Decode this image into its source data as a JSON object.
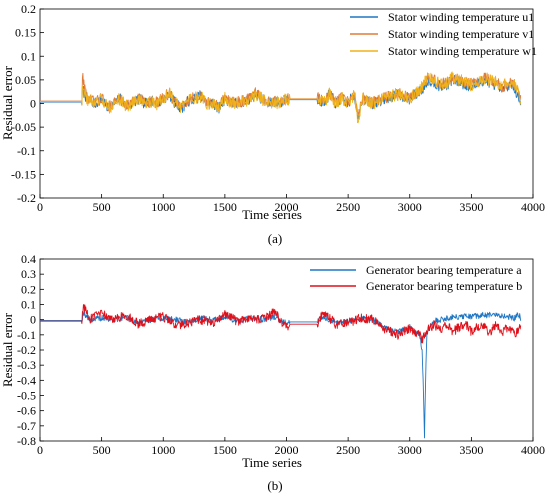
{
  "chart_data": [
    {
      "type": "line",
      "xlabel": "Time series",
      "ylabel": "Residual error",
      "xlim": [
        0,
        4000
      ],
      "ylim": [
        -0.2,
        0.2
      ],
      "grid": false,
      "legend_position": "top-right",
      "x_tick_labels": [
        "0",
        "500",
        "1000",
        "1500",
        "2000",
        "2500",
        "3000",
        "3500",
        "4000"
      ],
      "y_tick_labels": [
        "0.2",
        "0.15",
        "0.1",
        "0.05",
        "0",
        "-0.05",
        "-0.1",
        "-0.15",
        "-0.2"
      ],
      "caption": "(a)",
      "series": [
        {
          "name": "Stator winding temperature u1",
          "color": "#1f77c4",
          "noise_scale": 1.0,
          "x": [
            0,
            340,
            345,
            380,
            450,
            500,
            550,
            600,
            650,
            700,
            750,
            800,
            850,
            900,
            950,
            1000,
            1050,
            1100,
            1150,
            1200,
            1250,
            1300,
            1350,
            1400,
            1450,
            1500,
            1550,
            1600,
            1650,
            1700,
            1750,
            1800,
            1850,
            1900,
            1950,
            2000,
            2020,
            2250,
            2260,
            2300,
            2350,
            2400,
            2450,
            2500,
            2550,
            2580,
            2620,
            2700,
            2800,
            2900,
            3000,
            3050,
            3100,
            3150,
            3200,
            3250,
            3300,
            3350,
            3400,
            3450,
            3500,
            3550,
            3600,
            3650,
            3700,
            3750,
            3800,
            3850,
            3900
          ],
          "y": [
            0.003,
            0.003,
            0.03,
            0.01,
            0.0,
            0.01,
            -0.01,
            0.0,
            0.01,
            -0.005,
            0.0,
            0.01,
            0.0,
            0.005,
            0.0,
            0.01,
            0.02,
            0.0,
            -0.01,
            0.005,
            0.01,
            0.015,
            0.0,
            0.0,
            -0.01,
            0.01,
            0.0,
            0.0,
            0.005,
            0.01,
            0.02,
            0.01,
            0.0,
            0.005,
            0.0,
            0.01,
            0.008,
            0.008,
            0.01,
            0.0,
            0.02,
            0.0,
            0.01,
            0.0,
            0.02,
            -0.03,
            0.01,
            0.0,
            0.01,
            0.02,
            0.01,
            0.02,
            0.03,
            0.05,
            0.045,
            0.035,
            0.04,
            0.05,
            0.045,
            0.04,
            0.035,
            0.04,
            0.05,
            0.045,
            0.04,
            0.03,
            0.04,
            0.035,
            0.0
          ]
        },
        {
          "name": "Stator winding temperature v1",
          "color": "#e07b39",
          "noise_scale": 1.0,
          "x": [
            0,
            340,
            345,
            380,
            450,
            500,
            550,
            600,
            650,
            700,
            750,
            800,
            850,
            900,
            950,
            1000,
            1050,
            1100,
            1150,
            1200,
            1250,
            1300,
            1350,
            1400,
            1450,
            1500,
            1550,
            1600,
            1650,
            1700,
            1750,
            1800,
            1850,
            1900,
            1950,
            2000,
            2020,
            2250,
            2260,
            2300,
            2350,
            2400,
            2450,
            2500,
            2550,
            2580,
            2620,
            2700,
            2800,
            2900,
            3000,
            3050,
            3100,
            3150,
            3200,
            3250,
            3300,
            3350,
            3400,
            3450,
            3500,
            3550,
            3600,
            3650,
            3700,
            3750,
            3800,
            3850,
            3900
          ],
          "y": [
            0.005,
            0.005,
            0.06,
            0.012,
            0.002,
            0.012,
            -0.008,
            0.002,
            0.012,
            -0.003,
            0.002,
            0.012,
            0.002,
            0.007,
            0.002,
            0.012,
            0.022,
            0.002,
            -0.008,
            0.007,
            0.012,
            0.017,
            0.002,
            0.002,
            -0.008,
            0.012,
            0.002,
            0.002,
            0.007,
            0.012,
            0.022,
            0.012,
            0.002,
            0.007,
            0.002,
            0.012,
            0.01,
            0.01,
            0.012,
            0.002,
            0.022,
            0.002,
            0.012,
            0.002,
            0.022,
            -0.028,
            0.012,
            0.002,
            0.012,
            0.022,
            0.012,
            0.022,
            0.034,
            0.056,
            0.05,
            0.04,
            0.045,
            0.056,
            0.05,
            0.045,
            0.04,
            0.045,
            0.056,
            0.05,
            0.045,
            0.034,
            0.045,
            0.04,
            0.01
          ]
        },
        {
          "name": "Stator winding temperature w1",
          "color": "#f0b21a",
          "noise_scale": 1.15,
          "x": [
            0,
            340,
            345,
            380,
            450,
            500,
            550,
            600,
            650,
            700,
            750,
            800,
            850,
            900,
            950,
            1000,
            1050,
            1100,
            1150,
            1200,
            1250,
            1300,
            1350,
            1400,
            1450,
            1500,
            1550,
            1600,
            1650,
            1700,
            1750,
            1800,
            1850,
            1900,
            1950,
            2000,
            2020,
            2250,
            2260,
            2300,
            2350,
            2400,
            2450,
            2500,
            2550,
            2580,
            2620,
            2700,
            2800,
            2900,
            3000,
            3050,
            3100,
            3150,
            3200,
            3250,
            3300,
            3350,
            3400,
            3450,
            3500,
            3550,
            3600,
            3650,
            3700,
            3750,
            3800,
            3850,
            3900
          ],
          "y": [
            0.004,
            0.004,
            0.045,
            0.01,
            0.0,
            0.01,
            -0.01,
            0.0,
            0.01,
            -0.005,
            0.0,
            0.01,
            0.0,
            0.005,
            0.0,
            0.01,
            0.02,
            0.0,
            -0.01,
            0.005,
            0.01,
            0.015,
            0.0,
            0.0,
            -0.01,
            0.01,
            0.0,
            0.0,
            0.005,
            0.01,
            0.02,
            0.01,
            0.0,
            0.005,
            0.0,
            0.01,
            0.009,
            0.009,
            0.01,
            0.0,
            0.02,
            0.0,
            0.01,
            0.0,
            0.02,
            -0.035,
            0.01,
            0.0,
            0.01,
            0.02,
            0.01,
            0.02,
            0.035,
            0.06,
            0.05,
            0.04,
            0.045,
            0.055,
            0.05,
            0.045,
            0.04,
            0.045,
            0.055,
            0.05,
            0.045,
            0.035,
            0.045,
            0.04,
            0.008
          ]
        }
      ]
    },
    {
      "type": "line",
      "xlabel": "Time series",
      "ylabel": "Residual error",
      "xlim": [
        0,
        4000
      ],
      "ylim": [
        -0.8,
        0.4
      ],
      "grid": false,
      "legend_position": "top-right",
      "x_tick_labels": [
        "0",
        "500",
        "1000",
        "1500",
        "2000",
        "2500",
        "3000",
        "3500",
        "4000"
      ],
      "y_tick_labels": [
        "0.4",
        "0.3",
        "0.2",
        "0.1",
        "0",
        "-0.1",
        "-0.2",
        "-0.3",
        "-0.4",
        "-0.5",
        "-0.6",
        "-0.7",
        "-0.8"
      ],
      "caption": "(b)",
      "series": [
        {
          "name": "Generator bearing temperature a",
          "color": "#1f77c4",
          "noise_scale": 0.9,
          "x": [
            0,
            340,
            350,
            400,
            500,
            600,
            700,
            800,
            900,
            1000,
            1100,
            1200,
            1300,
            1400,
            1500,
            1600,
            1700,
            1800,
            1900,
            2000,
            2020,
            2250,
            2300,
            2400,
            2500,
            2600,
            2700,
            2800,
            2900,
            3000,
            3080,
            3100,
            3110,
            3120,
            3130,
            3140,
            3170,
            3200,
            3300,
            3400,
            3500,
            3600,
            3700,
            3800,
            3850,
            3880,
            3900
          ],
          "y": [
            -0.005,
            -0.005,
            0.05,
            0.0,
            0.01,
            0.0,
            0.02,
            -0.02,
            0.0,
            0.01,
            0.0,
            -0.02,
            0.01,
            0.0,
            0.02,
            -0.01,
            0.01,
            0.0,
            0.02,
            -0.02,
            -0.015,
            -0.015,
            0.02,
            -0.02,
            -0.01,
            0.01,
            0.0,
            -0.05,
            -0.08,
            -0.05,
            -0.1,
            -0.2,
            -0.45,
            -0.78,
            -0.35,
            -0.08,
            -0.03,
            -0.01,
            0.01,
            0.02,
            0.02,
            0.03,
            0.03,
            0.02,
            0.01,
            0.04,
            0.01
          ]
        },
        {
          "name": "Generator bearing temperature b",
          "color": "#e0101a",
          "noise_scale": 1.4,
          "x": [
            0,
            340,
            350,
            400,
            500,
            600,
            700,
            800,
            900,
            1000,
            1100,
            1200,
            1300,
            1400,
            1500,
            1600,
            1700,
            1800,
            1900,
            2000,
            2020,
            2250,
            2300,
            2400,
            2500,
            2600,
            2700,
            2800,
            2900,
            3000,
            3080,
            3100,
            3130,
            3150,
            3200,
            3250,
            3300,
            3350,
            3400,
            3450,
            3500,
            3550,
            3600,
            3650,
            3700,
            3750,
            3800,
            3850,
            3900
          ],
          "y": [
            -0.01,
            -0.01,
            0.1,
            0.0,
            0.04,
            0.0,
            0.03,
            -0.03,
            0.0,
            0.02,
            -0.04,
            -0.02,
            0.0,
            -0.03,
            0.03,
            -0.01,
            0.01,
            0.0,
            0.05,
            -0.05,
            -0.03,
            -0.03,
            0.05,
            -0.03,
            -0.02,
            0.01,
            0.0,
            -0.06,
            -0.1,
            -0.06,
            -0.1,
            -0.13,
            -0.08,
            -0.06,
            -0.03,
            -0.07,
            -0.03,
            -0.08,
            -0.05,
            -0.02,
            -0.08,
            -0.05,
            -0.04,
            -0.09,
            -0.03,
            -0.08,
            -0.05,
            -0.1,
            -0.04
          ]
        }
      ]
    }
  ]
}
